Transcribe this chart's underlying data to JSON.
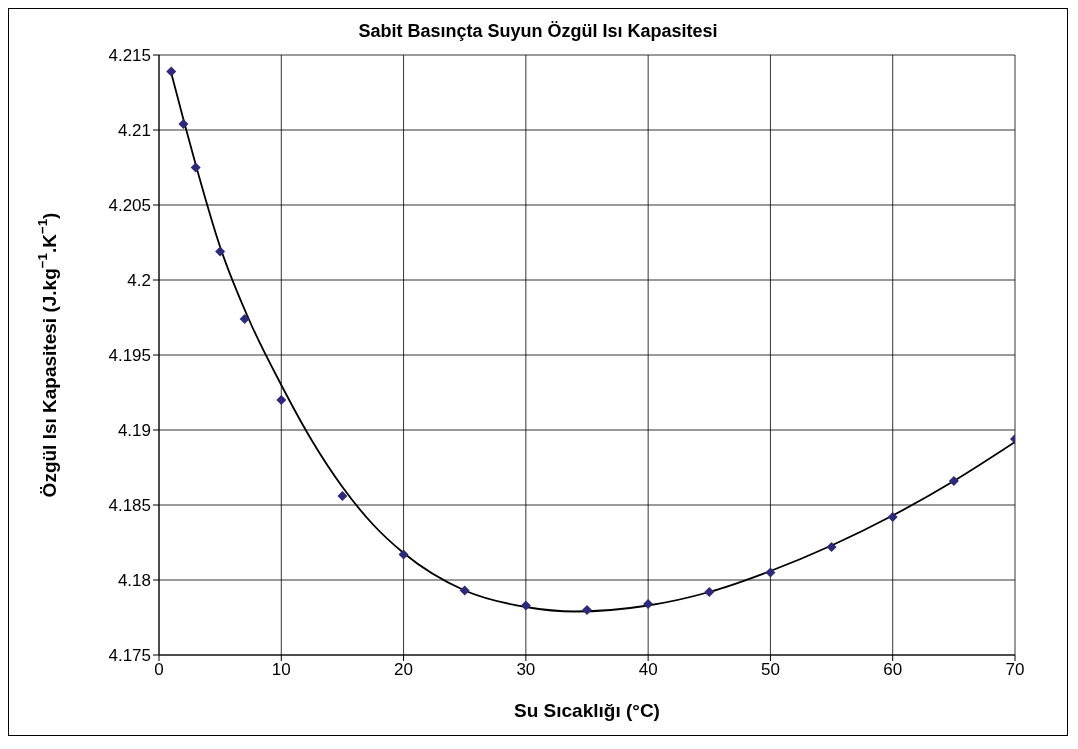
{
  "chart_data": {
    "type": "scatter",
    "title": "Sabit Basınçta Suyun Özgül Isı Kapasitesi",
    "xlabel": "Su Sıcaklığı (°C)",
    "ylabel": "Özgül Isı Kapasitesi  (J.kg$^{−1}$.K$^{−1}$)",
    "series": [
      {
        "color": "#2e2a7a",
        "marker": "diamond",
        "x": [
          1,
          2,
          3,
          5,
          7,
          10,
          15,
          20,
          25,
          30,
          35,
          40,
          45,
          50,
          55,
          60,
          65,
          70
        ],
        "values": [
          4.2139,
          4.2104,
          4.2075,
          4.2019,
          4.1974,
          4.192,
          4.1856,
          4.1817,
          4.1793,
          4.1783,
          4.178,
          4.1784,
          4.1792,
          4.1805,
          4.1822,
          4.1842,
          4.1866,
          4.1894
        ]
      },
      {
        "type": "line",
        "color": "#000000",
        "marker": "none",
        "line_style": "solid",
        "x": [
          1,
          2,
          3,
          5,
          7.5,
          10,
          12.5,
          15,
          17.5,
          20,
          25,
          30,
          34,
          40,
          45,
          50,
          55,
          60,
          65,
          70
        ],
        "values": [
          4.2138,
          4.2107,
          4.2077,
          4.2022,
          4.1971,
          4.193,
          4.1893,
          4.1862,
          4.1837,
          4.1818,
          4.1793,
          4.1782,
          4.1779,
          4.1783,
          4.1792,
          4.1806,
          4.1823,
          4.1843,
          4.1866,
          4.1892
        ]
      }
    ],
    "xlim": [
      0,
      70
    ],
    "xticks": [
      0,
      10,
      20,
      30,
      40,
      50,
      60,
      70
    ],
    "ylim": [
      4.175,
      4.215
    ],
    "yticks": [
      4.175,
      4.18,
      4.185,
      4.19,
      4.195,
      4.2,
      4.205,
      4.21,
      4.215
    ],
    "grid": true,
    "legend": false
  }
}
